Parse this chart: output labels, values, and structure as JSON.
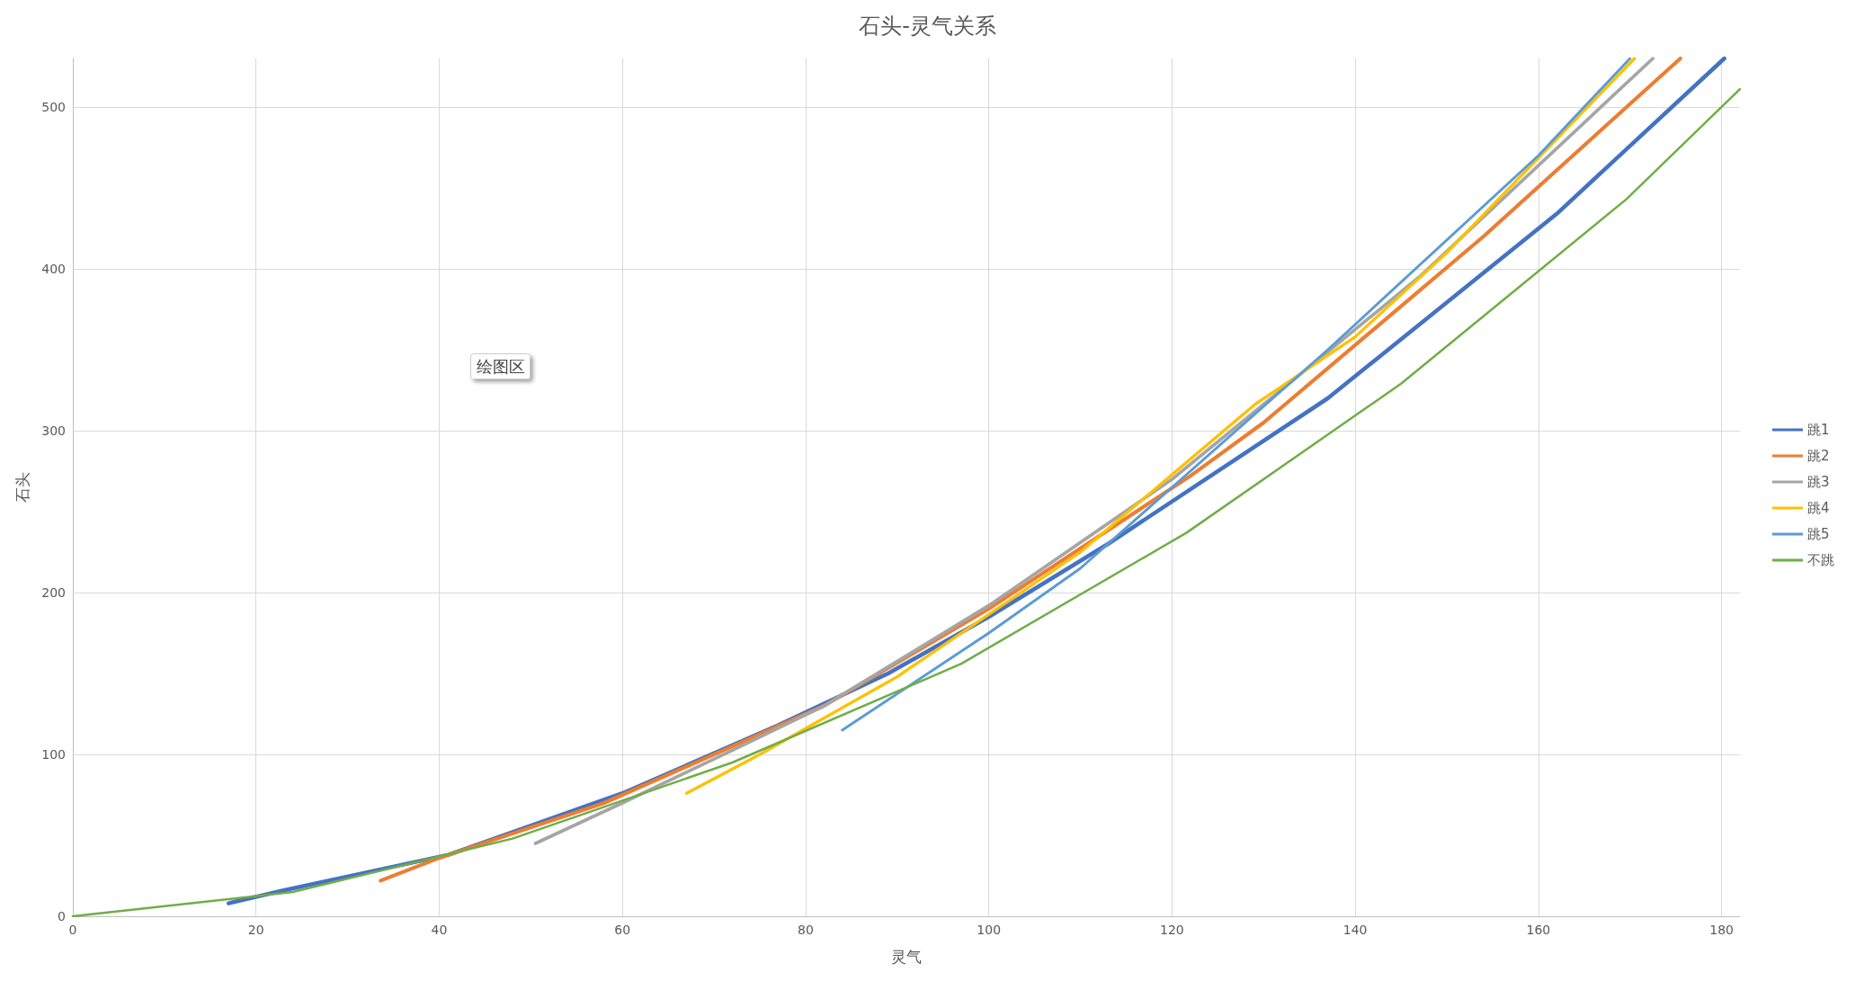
{
  "chart_data": {
    "type": "line",
    "title": "石头-灵气关系",
    "xlabel": "灵气",
    "ylabel": "石头",
    "xlim": [
      0,
      182
    ],
    "ylim": [
      0,
      530
    ],
    "xticks": [
      0,
      20,
      40,
      60,
      80,
      100,
      120,
      140,
      160,
      180
    ],
    "yticks": [
      0,
      100,
      200,
      300,
      400,
      500
    ],
    "grid": true,
    "legend": "right",
    "marker": "none",
    "line_style": "solid",
    "annotations": [
      "绘图区"
    ],
    "series": [
      {
        "name": "跳1",
        "color": "#4472c4",
        "x": [
          17,
          23,
          41,
          60,
          77,
          89,
          100,
          113,
          137,
          162,
          180.3
        ],
        "values": [
          8,
          16,
          38,
          76,
          118,
          150,
          185,
          230,
          320,
          434,
          530
        ]
      },
      {
        "name": "跳2",
        "color": "#ed7d31",
        "x": [
          33.6,
          40,
          58,
          82,
          100,
          122,
          130,
          154,
          175.5
        ],
        "values": [
          22,
          36,
          70,
          130,
          190,
          272,
          305,
          420,
          530
        ]
      },
      {
        "name": "跳3",
        "color": "#a5a5a5",
        "x": [
          50.5,
          60,
          74,
          82,
          100,
          120,
          147,
          172.5
        ],
        "values": [
          45,
          70,
          108,
          130,
          192,
          270,
          395,
          530
        ]
      },
      {
        "name": "跳4",
        "color": "#ffc000",
        "x": [
          67,
          75,
          90,
          110,
          129,
          140,
          150,
          170.5
        ],
        "values": [
          76,
          100,
          148,
          225,
          316,
          358,
          410,
          530
        ]
      },
      {
        "name": "跳5",
        "color": "#5b9bd5",
        "x": [
          84,
          100,
          110,
          120,
          137,
          160,
          170
        ],
        "values": [
          115,
          175,
          215,
          265,
          350,
          470,
          530
        ]
      },
      {
        "name": "不跳",
        "color": "#70ad47",
        "x": [
          0,
          24,
          48,
          72,
          97,
          121.6,
          145,
          169.6,
          182
        ],
        "values": [
          0,
          15,
          48,
          95,
          156,
          237,
          329,
          443,
          511
        ]
      }
    ]
  }
}
